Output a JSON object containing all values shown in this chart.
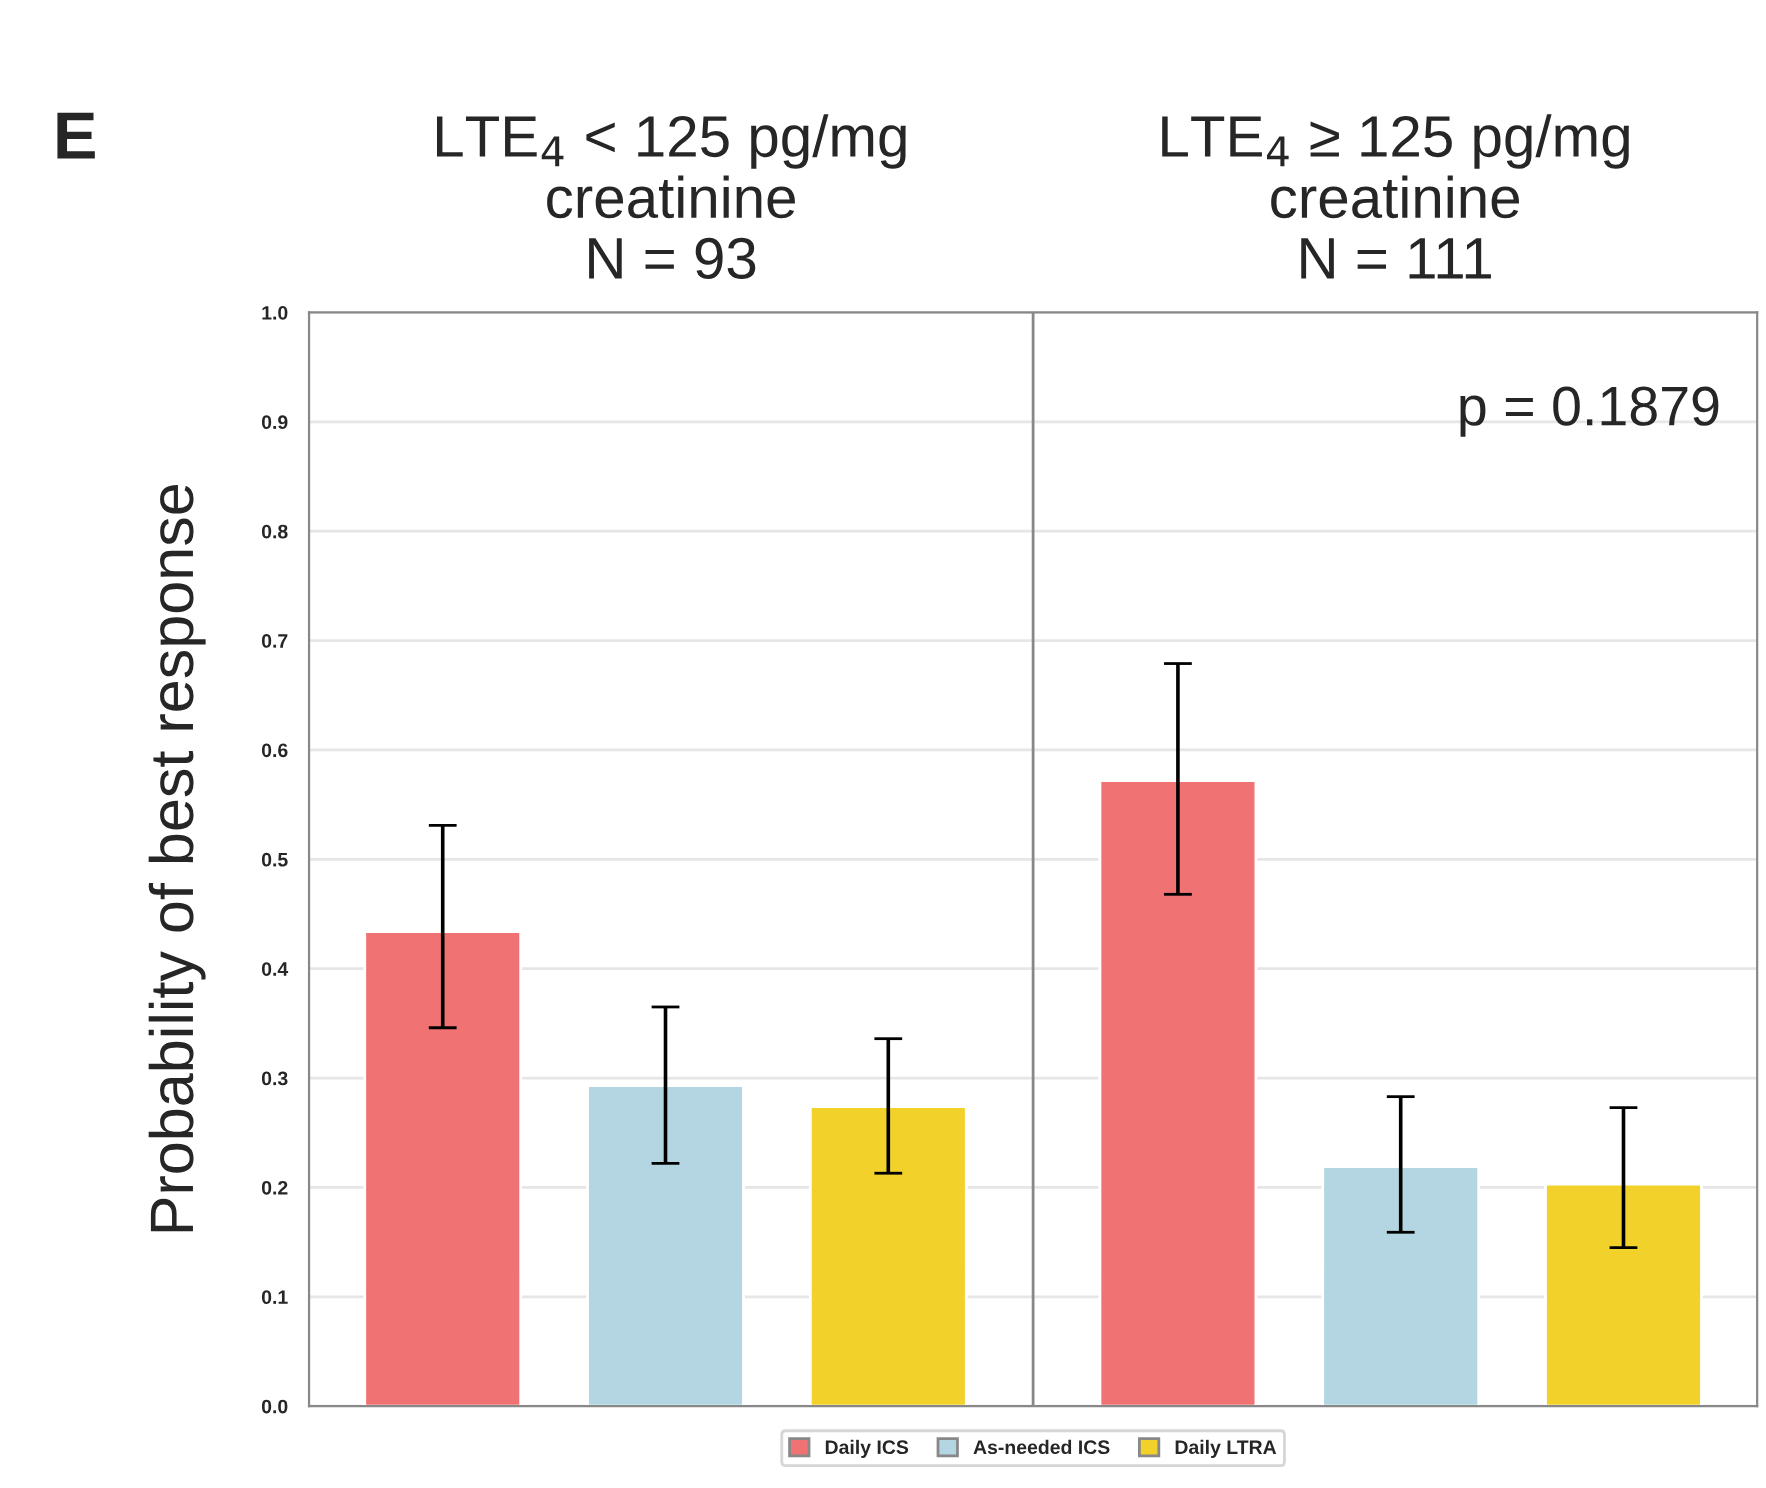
{
  "chart_data": {
    "type": "bar",
    "ylabel": "Probability of best response",
    "annotations": [
      "E",
      "LTE$_{4}$ < 125 pg/mg\ncreatinine\nN = 93",
      "LTE$_{4}$ ≥ 125 pg/mg\ncreatinine\nN = 111",
      "p = 0.1879"
    ],
    "categories": [
      null,
      null,
      null,
      null,
      null,
      null
    ],
    "series": [
      {
        "name": "Daily ICS",
        "color": "#f07272",
        "values": [
          0.434,
          null,
          null,
          0.572,
          null,
          null
        ],
        "errors": [
          [
            0.346,
            0.531
          ],
          null,
          null,
          [
            0.468,
            0.679
          ],
          null,
          null
        ]
      },
      {
        "name": "As-needed ICS",
        "color": "#b3d6e2",
        "values": [
          null,
          0.293,
          null,
          null,
          0.219,
          null
        ],
        "errors": [
          null,
          [
            0.222,
            0.365
          ],
          null,
          null,
          [
            0.159,
            0.283
          ],
          null
        ]
      },
      {
        "name": "Daily LTRA",
        "color": "#f2d22a",
        "values": [
          null,
          null,
          0.274,
          null,
          null,
          0.203
        ],
        "errors": [
          null,
          null,
          [
            0.213,
            0.336
          ],
          null,
          null,
          [
            0.145,
            0.273
          ]
        ]
      }
    ],
    "ylim": [
      0,
      1
    ],
    "yticks": [
      "0.0",
      0.1,
      0.2,
      0.3,
      0.4,
      0.5,
      0.6,
      0.7,
      0.8,
      0.9,
      "1.0"
    ],
    "grid": "y",
    "legend": "bottom",
    "tick_labels": "y"
  }
}
